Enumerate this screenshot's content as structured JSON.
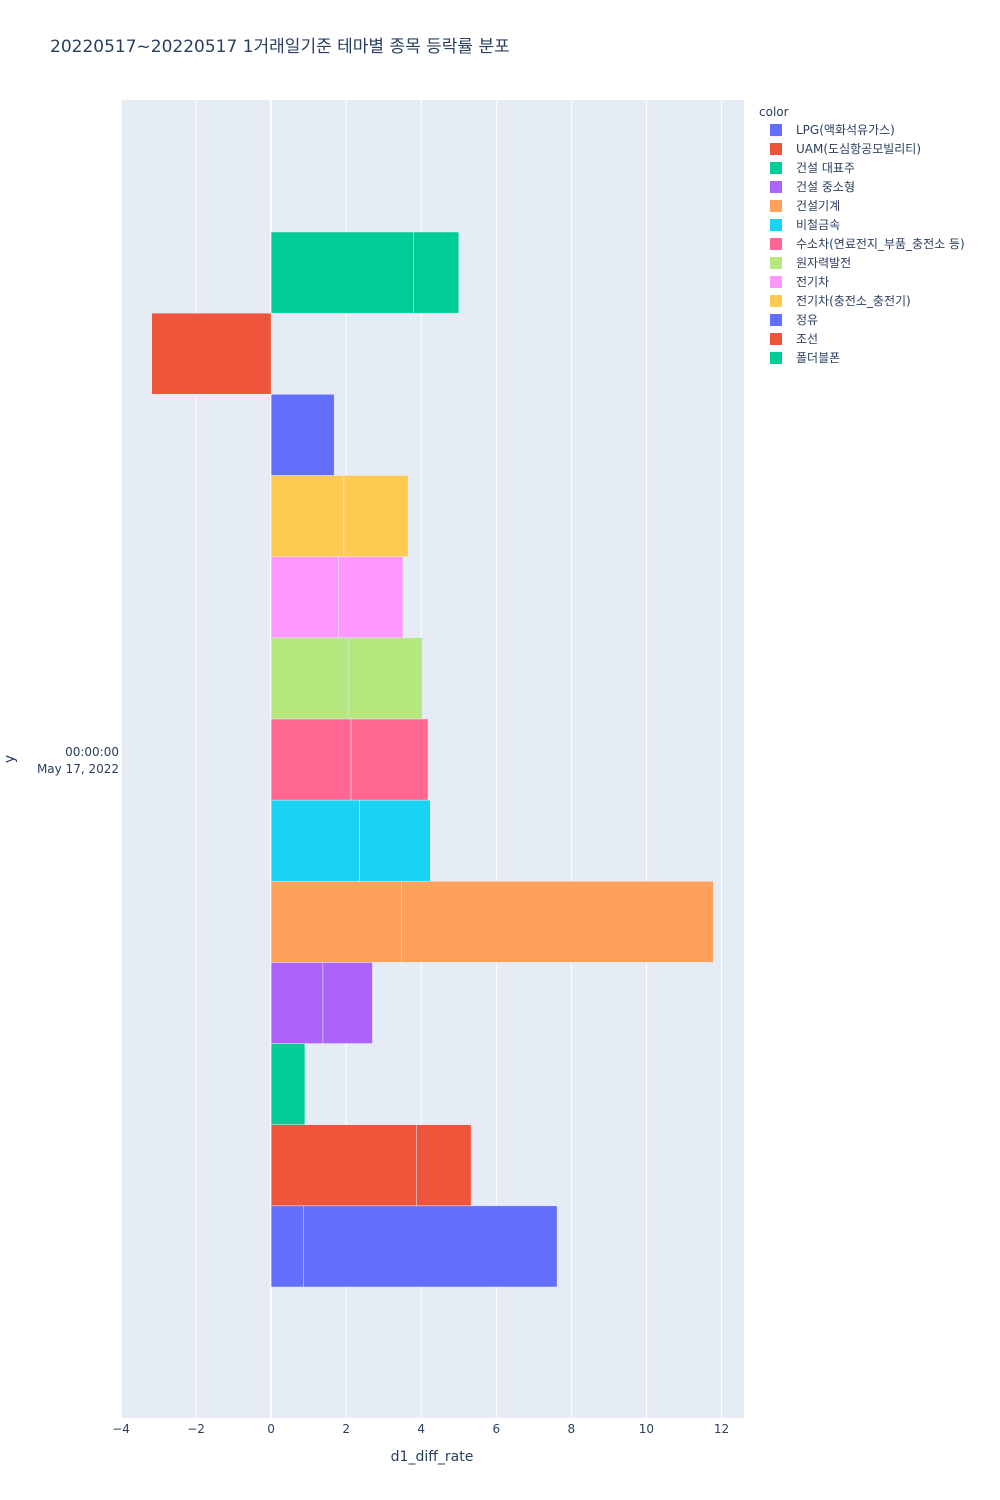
{
  "title": "20220517~20220517 1거래일기준 테마별 종목 등락률 분포",
  "chart_data": {
    "type": "bar",
    "orientation": "horizontal",
    "barmode": "relative",
    "title": "20220517~20220517 1거래일기준 테마별 종목 등락률 분포",
    "xlabel": "d1_diff_rate",
    "ylabel": "y",
    "xlim": [
      -4,
      12.6
    ],
    "x_ticks": [
      -4,
      -2,
      0,
      2,
      4,
      6,
      8,
      10,
      12
    ],
    "x_tick_labels": [
      "−4",
      "−2",
      "0",
      "2",
      "4",
      "6",
      "8",
      "10",
      "12"
    ],
    "y_category": "May 17, 2022 00:00:00",
    "y_tick_label_lines": [
      "00:00:00",
      "May 17, 2022"
    ],
    "grid": true,
    "legend_title": "color",
    "legend_position": "top-right",
    "series": [
      {
        "name": "LPG(액화석유가스)",
        "color": "#636efa",
        "values": [
          0.87,
          6.75
        ]
      },
      {
        "name": "UAM(도심항공모빌리티)",
        "color": "#EF553B",
        "values": [
          3.87,
          1.46
        ]
      },
      {
        "name": "건설 대표주",
        "color": "#00cc96",
        "values": [
          0.9
        ]
      },
      {
        "name": "건설 중소형",
        "color": "#ab63fa",
        "values": [
          1.38,
          1.32
        ]
      },
      {
        "name": "건설기계",
        "color": "#FFA15A",
        "values": [
          3.48,
          8.3
        ]
      },
      {
        "name": "비철금속",
        "color": "#19d3f3",
        "values": [
          2.36,
          1.88
        ]
      },
      {
        "name": "수소차(연료전지_부품_충전소 등)",
        "color": "#FF6692",
        "values": [
          2.13,
          2.05
        ]
      },
      {
        "name": "원자력발전",
        "color": "#B6E880",
        "values": [
          2.07,
          1.96
        ]
      },
      {
        "name": "전기차",
        "color": "#FF97FF",
        "values": [
          1.8,
          1.71
        ]
      },
      {
        "name": "전기차(충전소_충전기)",
        "color": "#FECB52",
        "values": [
          1.94,
          1.71
        ]
      },
      {
        "name": "정유",
        "color": "#636efa",
        "values": [
          1.68
        ]
      },
      {
        "name": "조선",
        "color": "#EF553B",
        "values": [
          -3.18
        ]
      },
      {
        "name": "폴더블폰",
        "color": "#00cc96",
        "values": [
          3.8,
          1.2
        ]
      }
    ]
  }
}
